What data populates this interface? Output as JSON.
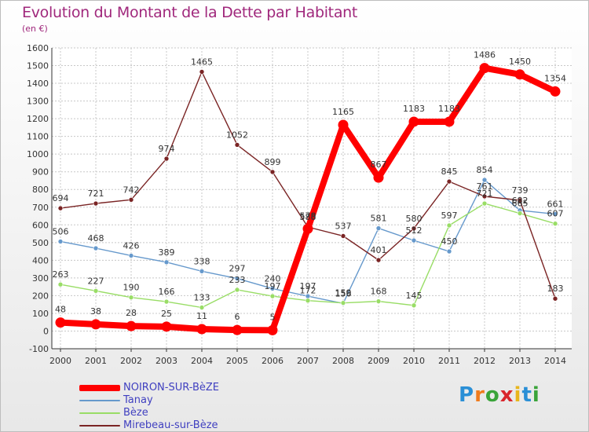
{
  "header": {
    "title": "Evolution du Montant de la Dette par Habitant",
    "unit": "(en €)"
  },
  "logo": {
    "text": "Proxiti"
  },
  "chart_data": {
    "type": "line",
    "title": "Evolution du Montant de la Dette par Habitant",
    "subtitle": "(en €)",
    "xlabel": "",
    "ylabel": "",
    "x": [
      "2000",
      "2001",
      "2002",
      "2003",
      "2004",
      "2005",
      "2006",
      "2007",
      "2008",
      "2009",
      "2010",
      "2011",
      "2012",
      "2013",
      "2014"
    ],
    "ylim": [
      -100,
      1600
    ],
    "yticks": [
      -100,
      0,
      100,
      200,
      300,
      400,
      500,
      600,
      700,
      800,
      900,
      1000,
      1100,
      1200,
      1300,
      1400,
      1500,
      1600
    ],
    "grid": true,
    "legend_position": "bottom-left",
    "series": [
      {
        "name": "NOIRON-SUR-BèZE",
        "color": "#ff0000",
        "stroke": 8,
        "values": [
          48,
          38,
          28,
          25,
          11,
          6,
          5,
          578,
          1165,
          867,
          1183,
          1183,
          1486,
          1450,
          1354
        ],
        "labels": [
          "48",
          "38",
          "28",
          "25",
          "11",
          "6",
          "5",
          "578",
          "1165",
          "867",
          "1183",
          "1183",
          "1486",
          "1450",
          "1354"
        ]
      },
      {
        "name": "Tanay",
        "color": "#6699cc",
        "stroke": 1.4,
        "values": [
          506,
          468,
          426,
          389,
          338,
          297,
          240,
          197,
          156,
          581,
          512,
          450,
          854,
          682,
          661
        ],
        "labels": [
          "506",
          "468",
          "426",
          "389",
          "338",
          "297",
          "240",
          "197",
          "156",
          "581",
          "512",
          "450",
          "854",
          "682",
          "661"
        ]
      },
      {
        "name": "Bèze",
        "color": "#99dd66",
        "stroke": 1.4,
        "values": [
          263,
          227,
          190,
          166,
          133,
          233,
          197,
          172,
          159,
          168,
          145,
          597,
          721,
          665,
          607
        ],
        "labels": [
          "263",
          "227",
          "190",
          "166",
          "133",
          "233",
          "197",
          "172",
          "159",
          "168",
          "145",
          "597",
          "721",
          "665",
          "607"
        ]
      },
      {
        "name": "Mirebeau-sur-Bèze",
        "color": "#7a2424",
        "stroke": 1.4,
        "values": [
          694,
          721,
          742,
          974,
          1465,
          1052,
          899,
          588,
          537,
          401,
          580,
          845,
          761,
          739,
          183
        ],
        "labels": [
          "694",
          "721",
          "742",
          "974",
          "1465",
          "1052",
          "899",
          "588",
          "537",
          "401",
          "580",
          "845",
          "761",
          "739",
          "183"
        ]
      }
    ]
  }
}
